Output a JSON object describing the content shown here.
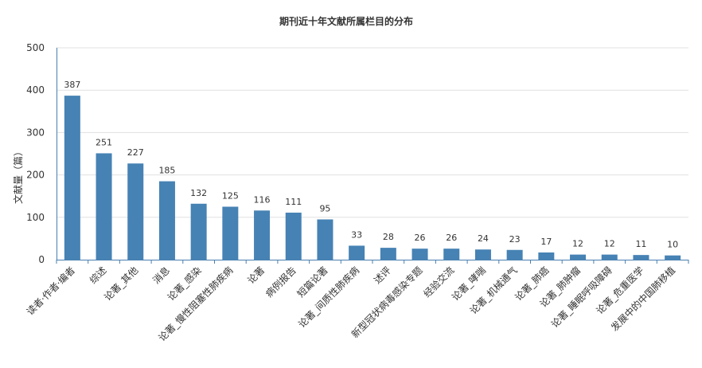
{
  "chart_data": {
    "type": "bar",
    "title": "期刊近十年文献所属栏目的分布",
    "xlabel": "",
    "ylabel": "文献量（篇）",
    "ylim": [
      0,
      500
    ],
    "yticks": [
      0,
      100,
      200,
      300,
      400,
      500
    ],
    "grid": true,
    "bar_color": "#4682b4",
    "categories": [
      "读者·作者·编者",
      "综述",
      "论著_其他",
      "消息",
      "论著_感染",
      "论著_慢性阻塞性肺疾病",
      "论著",
      "病例报告",
      "短篇论著",
      "论著_间质性肺疾病",
      "述评",
      "新型冠状病毒感染专题",
      "经验交流",
      "论著_哮喘",
      "论著_机械通气",
      "论著_肺癌",
      "论著_肺肿瘤",
      "论著_睡眠呼吸障碍",
      "论著_危重医学",
      "发展中的中国肺移植"
    ],
    "values": [
      387,
      251,
      227,
      185,
      132,
      125,
      116,
      111,
      95,
      33,
      28,
      26,
      26,
      24,
      23,
      17,
      12,
      12,
      11,
      10
    ]
  }
}
